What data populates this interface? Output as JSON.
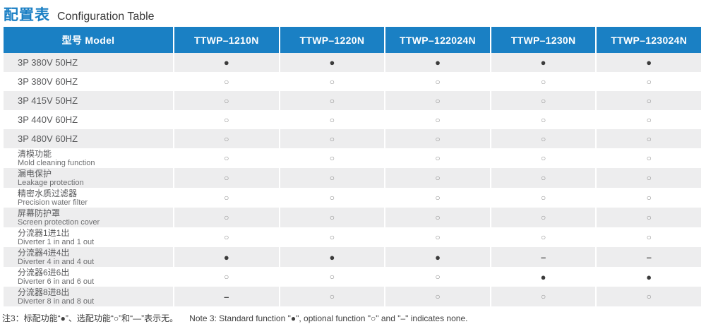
{
  "page": {
    "title_zh": "配置表",
    "title_en": "Configuration Table"
  },
  "table": {
    "header": {
      "model_label": "型号 Model",
      "columns": [
        "TTWP–1210N",
        "TTWP–1220N",
        "TTWP–122024N",
        "TTWP–1230N",
        "TTWP–123024N"
      ]
    },
    "legend": {
      "standard": "●",
      "optional": "○",
      "none": "–"
    },
    "rows": [
      {
        "label_zh": "3P 380V 50HZ",
        "label_en": "",
        "values": [
          "●",
          "●",
          "●",
          "●",
          "●"
        ]
      },
      {
        "label_zh": "3P 380V 60HZ",
        "label_en": "",
        "values": [
          "○",
          "○",
          "○",
          "○",
          "○"
        ]
      },
      {
        "label_zh": "3P 415V 50HZ",
        "label_en": "",
        "values": [
          "○",
          "○",
          "○",
          "○",
          "○"
        ]
      },
      {
        "label_zh": "3P 440V 60HZ",
        "label_en": "",
        "values": [
          "○",
          "○",
          "○",
          "○",
          "○"
        ]
      },
      {
        "label_zh": "3P 480V 60HZ",
        "label_en": "",
        "values": [
          "○",
          "○",
          "○",
          "○",
          "○"
        ]
      },
      {
        "label_zh": "清模功能",
        "label_en": "Mold cleaning function",
        "values": [
          "○",
          "○",
          "○",
          "○",
          "○"
        ]
      },
      {
        "label_zh": "漏电保护",
        "label_en": "Leakage protection",
        "values": [
          "○",
          "○",
          "○",
          "○",
          "○"
        ]
      },
      {
        "label_zh": "精密水质过滤器",
        "label_en": "Precision water filter",
        "values": [
          "○",
          "○",
          "○",
          "○",
          "○"
        ]
      },
      {
        "label_zh": "屏幕防护罩",
        "label_en": "Screen protection cover",
        "values": [
          "○",
          "○",
          "○",
          "○",
          "○"
        ]
      },
      {
        "label_zh": "分流器1进1出",
        "label_en": "Diverter 1 in and 1 out",
        "values": [
          "○",
          "○",
          "○",
          "○",
          "○"
        ]
      },
      {
        "label_zh": "分流器4进4出",
        "label_en": "Diverter 4 in and 4 out",
        "values": [
          "●",
          "●",
          "●",
          "–",
          "–"
        ]
      },
      {
        "label_zh": "分流器6进6出",
        "label_en": "Diverter 6 in and 6 out",
        "values": [
          "○",
          "○",
          "○",
          "●",
          "●"
        ]
      },
      {
        "label_zh": "分流器8进8出",
        "label_en": "Diverter 8 in and 8 out",
        "values": [
          "–",
          "○",
          "○",
          "○",
          "○"
        ]
      }
    ]
  },
  "footnote": {
    "zh": "注3：标配功能“●”、选配功能“○”和“—”表示无。",
    "en": "Note 3: Standard function \"●\", optional function \"○\" and \"–\" indicates none."
  },
  "colors": {
    "header_blue": "#1a80c4",
    "title_blue": "#1a7fc4",
    "row_gray": "#ededee",
    "symbol_filled": "#3b3b3b",
    "symbol_outline": "#8f8f8f"
  }
}
